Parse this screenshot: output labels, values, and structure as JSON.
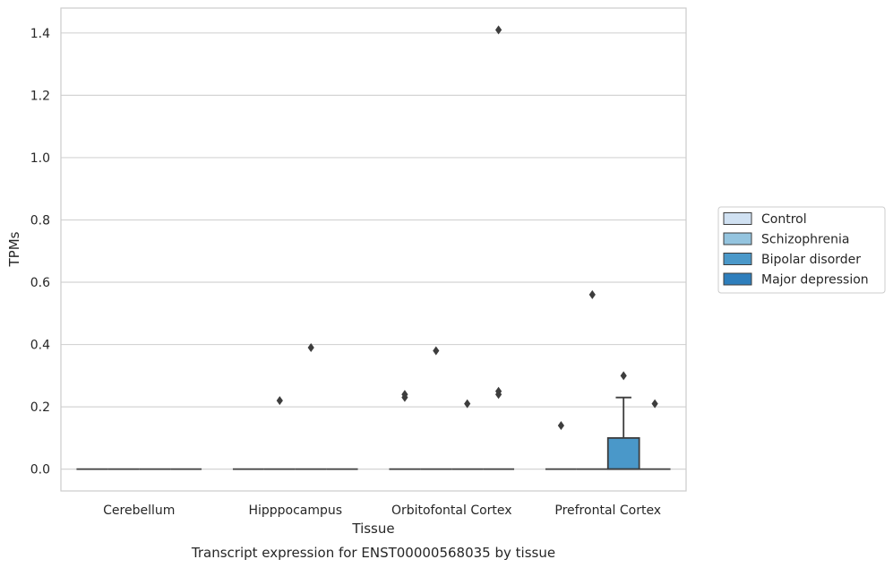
{
  "chart_data": {
    "type": "box",
    "title": "",
    "caption": "Transcript expression for ENST00000568035 by tissue",
    "xlabel": "Tissue",
    "ylabel": "TPMs",
    "ylim": [
      -0.07,
      1.48
    ],
    "yticks": [
      0.0,
      0.2,
      0.4,
      0.6,
      0.8,
      1.0,
      1.2,
      1.4
    ],
    "ytick_labels": [
      "0.0",
      "0.2",
      "0.4",
      "0.6",
      "0.8",
      "1.0",
      "1.2",
      "1.4"
    ],
    "grid": "horizontal",
    "legend_position": "right",
    "categories": [
      "Cerebellum",
      "Hipppocampus",
      "Orbitofontal Cortex",
      "Prefrontal Cortex"
    ],
    "series": [
      {
        "name": "Control",
        "color": "#d0e1f2",
        "boxes": [
          {
            "category": "Cerebellum",
            "q1": 0,
            "median": 0,
            "q3": 0,
            "whisker_low": 0,
            "whisker_high": 0,
            "outliers": []
          },
          {
            "category": "Hipppocampus",
            "q1": 0,
            "median": 0,
            "q3": 0,
            "whisker_low": 0,
            "whisker_high": 0,
            "outliers": []
          },
          {
            "category": "Orbitofontal Cortex",
            "q1": 0,
            "median": 0,
            "q3": 0,
            "whisker_low": 0,
            "whisker_high": 0,
            "outliers": [
              0.23,
              0.24
            ]
          },
          {
            "category": "Prefrontal Cortex",
            "q1": 0,
            "median": 0,
            "q3": 0,
            "whisker_low": 0,
            "whisker_high": 0,
            "outliers": [
              0.14
            ]
          }
        ]
      },
      {
        "name": "Schizophrenia",
        "color": "#94c4df",
        "boxes": [
          {
            "category": "Cerebellum",
            "q1": 0,
            "median": 0,
            "q3": 0,
            "whisker_low": 0,
            "whisker_high": 0,
            "outliers": []
          },
          {
            "category": "Hipppocampus",
            "q1": 0,
            "median": 0,
            "q3": 0,
            "whisker_low": 0,
            "whisker_high": 0,
            "outliers": [
              0.22
            ]
          },
          {
            "category": "Orbitofontal Cortex",
            "q1": 0,
            "median": 0,
            "q3": 0,
            "whisker_low": 0,
            "whisker_high": 0,
            "outliers": [
              0.38
            ]
          },
          {
            "category": "Prefrontal Cortex",
            "q1": 0,
            "median": 0,
            "q3": 0,
            "whisker_low": 0,
            "whisker_high": 0,
            "outliers": [
              0.56
            ]
          }
        ]
      },
      {
        "name": "Bipolar disorder",
        "color": "#4a98c9",
        "boxes": [
          {
            "category": "Cerebellum",
            "q1": 0,
            "median": 0,
            "q3": 0,
            "whisker_low": 0,
            "whisker_high": 0,
            "outliers": []
          },
          {
            "category": "Hipppocampus",
            "q1": 0,
            "median": 0,
            "q3": 0,
            "whisker_low": 0,
            "whisker_high": 0,
            "outliers": [
              0.39
            ]
          },
          {
            "category": "Orbitofontal Cortex",
            "q1": 0,
            "median": 0,
            "q3": 0,
            "whisker_low": 0,
            "whisker_high": 0,
            "outliers": [
              0.21
            ]
          },
          {
            "category": "Prefrontal Cortex",
            "q1": 0,
            "median": 0,
            "q3": 0.1,
            "whisker_low": 0,
            "whisker_high": 0.23,
            "outliers": [
              0.3
            ]
          }
        ]
      },
      {
        "name": "Major depression",
        "color": "#2e7ebc",
        "boxes": [
          {
            "category": "Cerebellum",
            "q1": 0,
            "median": 0,
            "q3": 0,
            "whisker_low": 0,
            "whisker_high": 0,
            "outliers": []
          },
          {
            "category": "Hipppocampus",
            "q1": 0,
            "median": 0,
            "q3": 0,
            "whisker_low": 0,
            "whisker_high": 0,
            "outliers": []
          },
          {
            "category": "Orbitofontal Cortex",
            "q1": 0,
            "median": 0,
            "q3": 0,
            "whisker_low": 0,
            "whisker_high": 0,
            "outliers": [
              1.41,
              0.24,
              0.25
            ]
          },
          {
            "category": "Prefrontal Cortex",
            "q1": 0,
            "median": 0,
            "q3": 0,
            "whisker_low": 0,
            "whisker_high": 0,
            "outliers": [
              0.21
            ]
          }
        ]
      }
    ]
  }
}
